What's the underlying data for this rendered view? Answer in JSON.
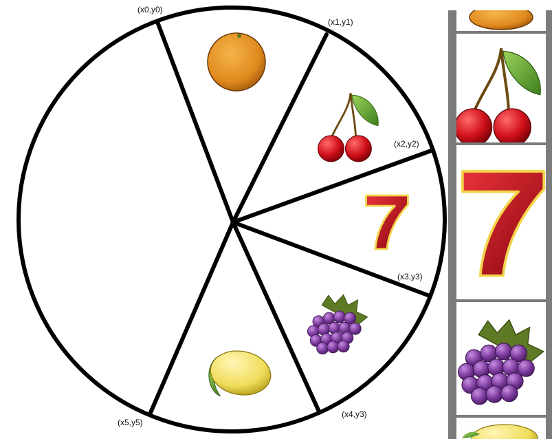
{
  "wheel": {
    "points": [
      {
        "id": "p0",
        "label": "(x0,y0)"
      },
      {
        "id": "p1",
        "label": "(x1,y1)"
      },
      {
        "id": "p2",
        "label": "(x2,y2)"
      },
      {
        "id": "p3",
        "label": "(x3,y3)"
      },
      {
        "id": "p4",
        "label": "(x4,y3)"
      },
      {
        "id": "p5",
        "label": "(x5,y5)"
      }
    ],
    "segments": [
      {
        "between": "p0-p1",
        "symbol": "orange"
      },
      {
        "between": "p1-p2",
        "symbol": "cherries"
      },
      {
        "between": "p2-p3",
        "symbol": "seven"
      },
      {
        "between": "p3-p4",
        "symbol": "grapes"
      },
      {
        "between": "p4-p5",
        "symbol": "lemon"
      },
      {
        "between": "p5-p0",
        "symbol": "empty"
      }
    ]
  },
  "reel_strip": {
    "symbols": [
      "orange-partial",
      "cherries",
      "seven",
      "grapes",
      "lemon-partial"
    ]
  },
  "colors": {
    "outline": "#000000",
    "strip_frame": "#7b7b7b",
    "orange": "#e08a1e",
    "cherry": "#d0101a",
    "leaf": "#5aa332",
    "seven": "#c4111c",
    "seven_trim": "#f2d54a",
    "grape": "#7b3a9c",
    "lemon": "#f0dc5a"
  }
}
